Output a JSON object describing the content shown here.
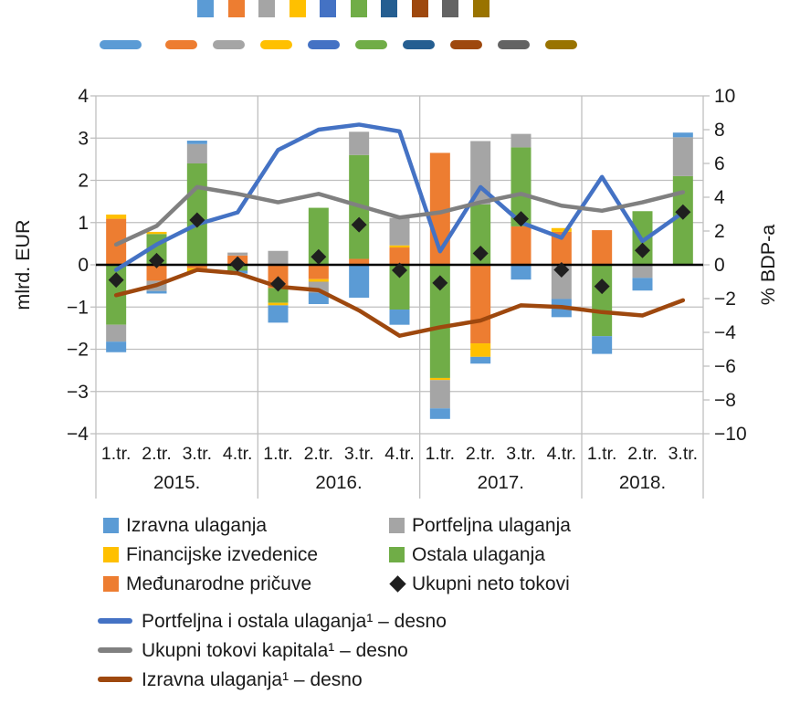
{
  "top_swatches": {
    "colors": [
      "#5B9BD5",
      "#ED7D31",
      "#A5A5A5",
      "#FFC000",
      "#4472C4",
      "#70AD47",
      "#255E91",
      "#9E480E",
      "#636363",
      "#997300"
    ],
    "square_lefts": [
      216,
      250,
      283,
      317,
      350,
      384,
      417,
      451,
      484,
      518
    ],
    "dash_lefts": [
      109,
      181,
      233,
      285,
      337,
      389,
      441,
      493,
      545,
      597
    ],
    "dash_widths": [
      46,
      35,
      35,
      35,
      35,
      35,
      35,
      35,
      35,
      35
    ]
  },
  "chart_data": {
    "type": "bar",
    "subtype": "stacked-column-with-lines-and-markers",
    "groups": [
      {
        "year": "2015.",
        "quarters": [
          "1.tr.",
          "2.tr.",
          "3.tr.",
          "4.tr."
        ]
      },
      {
        "year": "2016.",
        "quarters": [
          "1.tr.",
          "2.tr.",
          "3.tr.",
          "4.tr."
        ]
      },
      {
        "year": "2017.",
        "quarters": [
          "1.tr.",
          "2.tr.",
          "3.tr.",
          "4.tr."
        ]
      },
      {
        "year": "2018.",
        "quarters": [
          "1.tr.",
          "2.tr.",
          "3.tr."
        ]
      }
    ],
    "left_axis": {
      "title": "mlrd. EUR",
      "min": -4,
      "max": 4,
      "step": 1,
      "tick_labels": [
        "4",
        "3",
        "2",
        "1",
        "0",
        "−1",
        "−2",
        "−3",
        "−4"
      ]
    },
    "right_axis": {
      "title": "% BDP-a",
      "min": -10,
      "max": 10,
      "step": 2,
      "tick_labels": [
        "10",
        "8",
        "6",
        "4",
        "2",
        "0",
        "−2",
        "−4",
        "−6",
        "−8",
        "−10"
      ]
    },
    "grid_color": "#BFBFBF",
    "zero_line_color": "#000000",
    "bar_series": [
      {
        "name": "Međunarodne pričuve",
        "color": "#ED7D31",
        "values": [
          1.09,
          -0.38,
          -0.08,
          0.22,
          -0.55,
          -0.34,
          0.14,
          0.41,
          2.65,
          -1.86,
          0.91,
          0.78,
          0.82,
          0,
          0
        ]
      },
      {
        "name": "Ostala ulaganja",
        "color": "#70AD47",
        "values": [
          -1.42,
          0.73,
          2.4,
          -0.14,
          -0.35,
          1.35,
          2.46,
          -1.06,
          -2.68,
          1.43,
          1.87,
          0,
          -1.69,
          1.27,
          2.1
        ]
      },
      {
        "name": "Financijske izvedenice",
        "color": "#FFC000",
        "values": [
          0.1,
          0.05,
          -0.08,
          0,
          -0.06,
          -0.06,
          0,
          0.05,
          -0.05,
          -0.32,
          0,
          0.09,
          0,
          0,
          0
        ]
      },
      {
        "name": "Portfeljna ulaganja",
        "color": "#A5A5A5",
        "values": [
          -0.4,
          -0.24,
          0.46,
          0.07,
          0.33,
          -0.26,
          0.55,
          0.65,
          -0.67,
          1.5,
          0.32,
          -0.81,
          0,
          -0.31,
          0.92
        ]
      },
      {
        "name": "Izravna ulaganja",
        "color": "#5B9BD5",
        "values": [
          -0.25,
          -0.06,
          0.08,
          -0.07,
          -0.41,
          -0.27,
          -0.78,
          -0.36,
          -0.25,
          -0.16,
          -0.35,
          -0.43,
          -0.42,
          -0.3,
          0.11
        ]
      }
    ],
    "marker_series": {
      "name": "Ukupni neto tokovi",
      "color": "#1F1F1F",
      "axis": "left",
      "values": [
        -0.36,
        0.1,
        1.06,
        0.02,
        -0.45,
        0.19,
        0.95,
        -0.13,
        -0.43,
        0.27,
        1.09,
        -0.12,
        -0.51,
        0.34,
        1.25
      ]
    },
    "line_series": [
      {
        "name": "Portfeljna i ostala ulaganja¹ – desno",
        "color": "#4472C4",
        "axis": "right",
        "values": [
          -0.3,
          1.2,
          2.4,
          3.1,
          6.8,
          8.0,
          8.3,
          7.9,
          0.8,
          4.6,
          2.5,
          1.6,
          5.2,
          1.4,
          3.1
        ]
      },
      {
        "name": "Ukupni tokovi kapitala¹ – desno",
        "color": "#808080",
        "axis": "right",
        "values": [
          1.2,
          2.3,
          4.6,
          4.2,
          3.7,
          4.2,
          3.5,
          2.8,
          3.1,
          3.7,
          4.2,
          3.5,
          3.2,
          3.7,
          4.3
        ]
      },
      {
        "name": "Izravna ulaganja¹ – desno",
        "color": "#9E480E",
        "axis": "right",
        "values": [
          -1.8,
          -1.2,
          -0.3,
          -0.5,
          -1.3,
          -1.5,
          -2.7,
          -4.2,
          -3.7,
          -3.3,
          -2.4,
          -2.5,
          -2.8,
          -3.0,
          -2.1
        ]
      }
    ]
  },
  "legend": {
    "items": [
      {
        "label": "Izravna ulaganja",
        "color": "#5B9BD5",
        "marker": "square"
      },
      {
        "label": "Portfeljna ulaganja",
        "color": "#A5A5A5",
        "marker": "square"
      },
      {
        "label": "Financijske izvedenice",
        "color": "#FFC000",
        "marker": "square"
      },
      {
        "label": "Ostala ulaganja",
        "color": "#70AD47",
        "marker": "square"
      },
      {
        "label": "Međunarodne pričuve",
        "color": "#ED7D31",
        "marker": "square"
      },
      {
        "label": "Ukupni neto tokovi",
        "color": "#1F1F1F",
        "marker": "diamond"
      }
    ],
    "line_items": [
      {
        "label": "Portfeljna i ostala ulaganja¹ – desno",
        "color": "#4472C4"
      },
      {
        "label": "Ukupni tokovi kapitala¹ – desno",
        "color": "#808080"
      },
      {
        "label": "Izravna ulaganja¹ – desno",
        "color": "#9E480E"
      }
    ]
  }
}
